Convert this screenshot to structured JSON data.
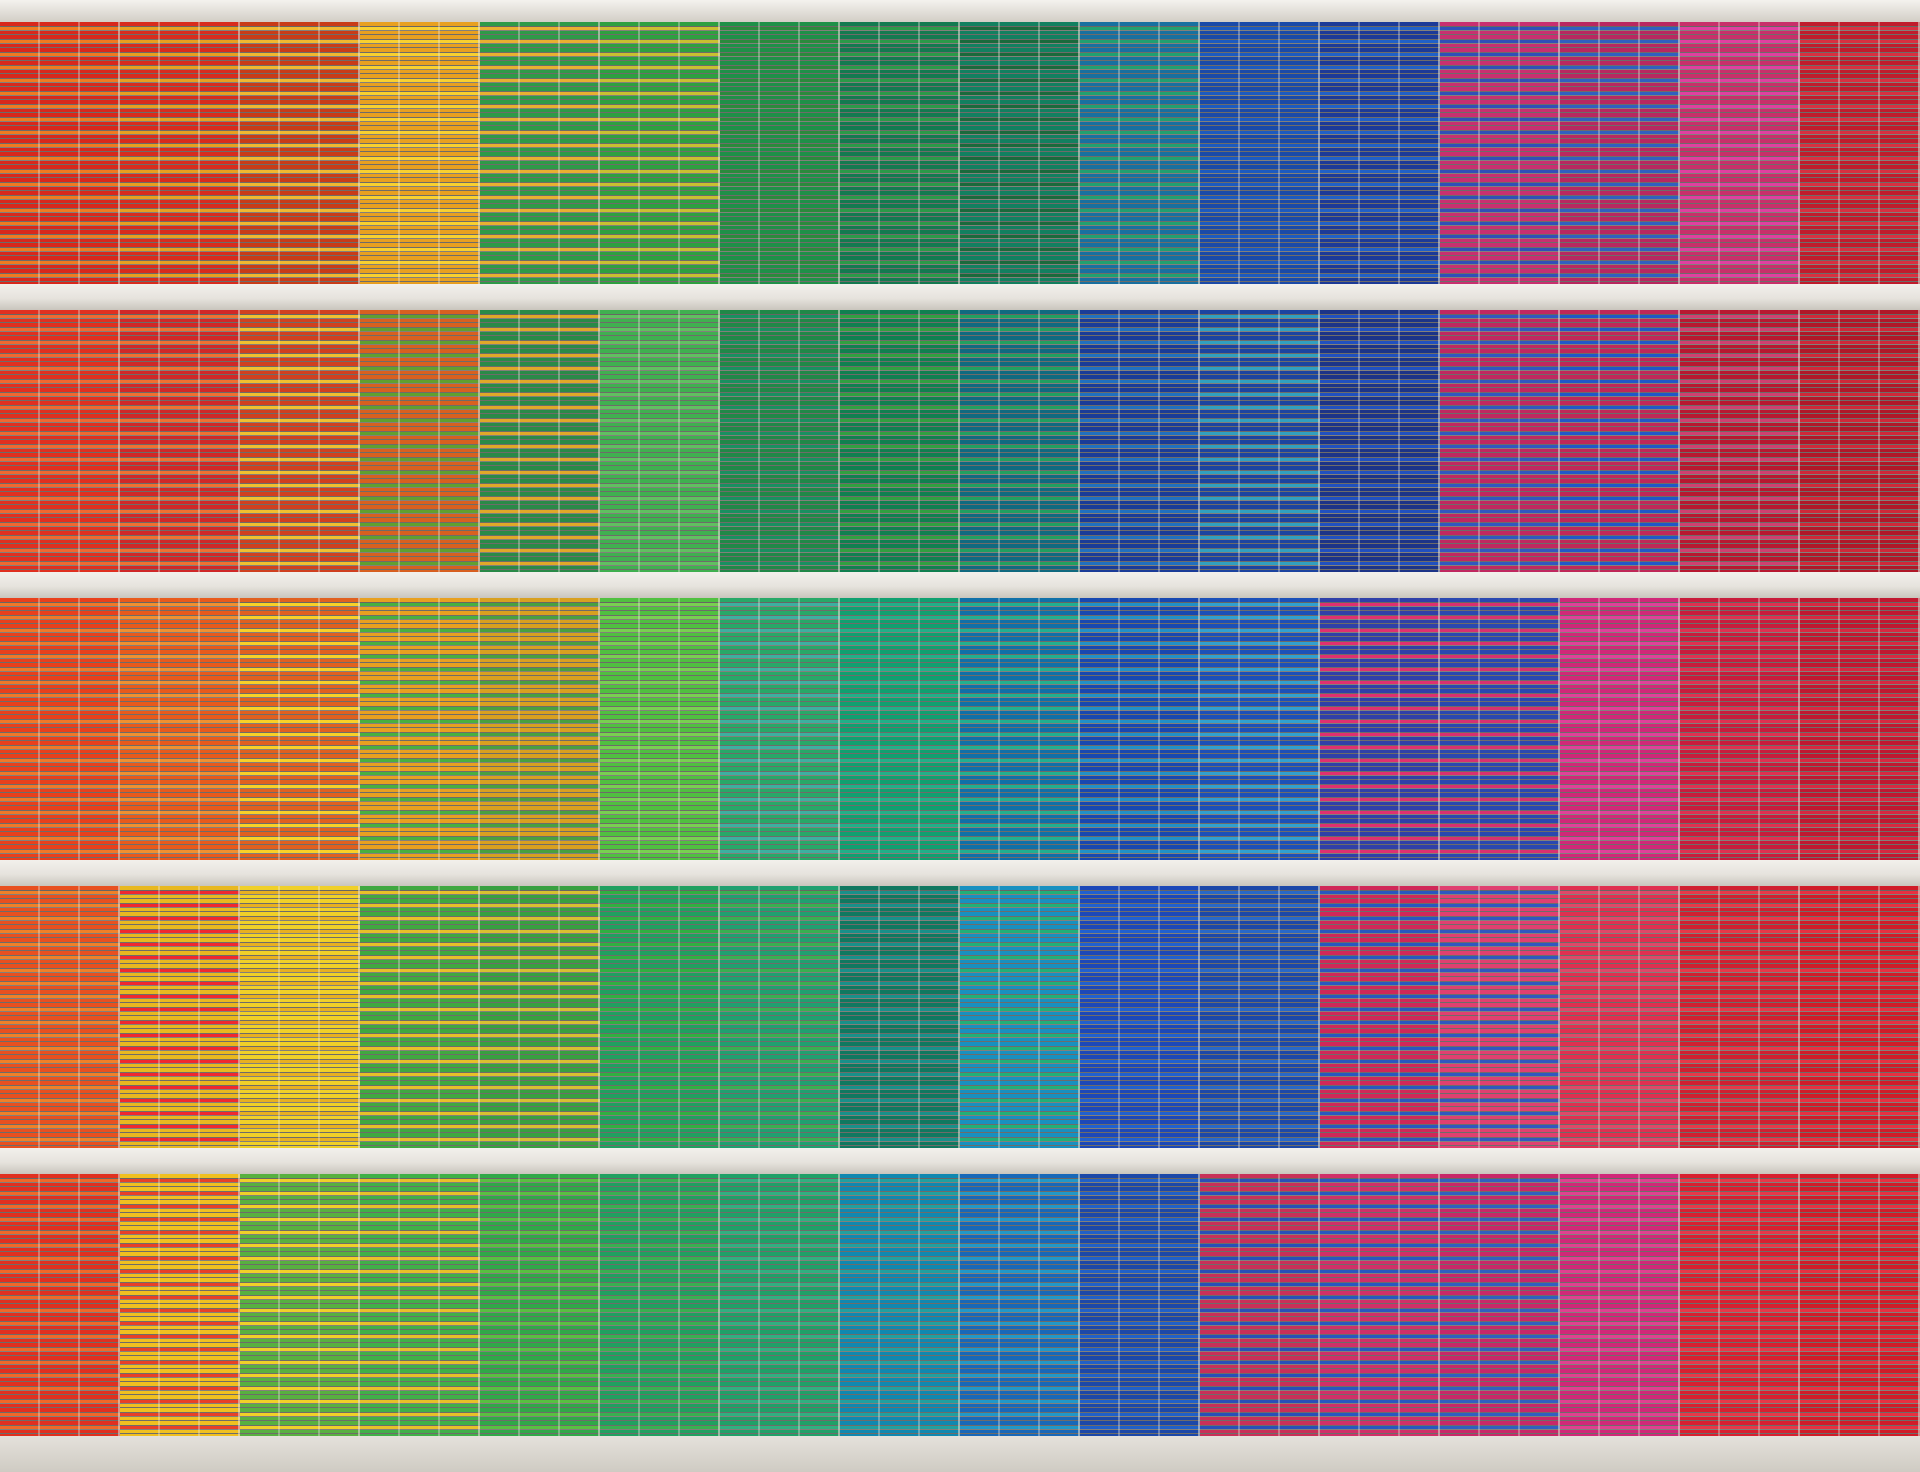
{
  "photo": {
    "subject": "",
    "floors": 5,
    "panels_per_floor": 16
  },
  "palette": {
    "rows": [
      [
        [
          "#d8281c",
          "#f07a20"
        ],
        [
          "#d82c1e",
          "#e8a020"
        ],
        [
          "#c83c18",
          "#f0b830"
        ],
        [
          "#e8a020",
          "#f8d030"
        ],
        [
          "#2e9a48",
          "#e8b030"
        ],
        [
          "#2ea040",
          "#c8c030"
        ],
        [
          "#1e9048",
          "#2a8a3c"
        ],
        [
          "#137a50",
          "#2a9a48"
        ],
        [
          "#128060",
          "#1a6a3c"
        ],
        [
          "#1870a0",
          "#20a070"
        ],
        [
          "#1a4aa8",
          "#1c5ac0"
        ],
        [
          "#1c3a98",
          "#2060c8"
        ],
        [
          "#c83070",
          "#3050b8"
        ],
        [
          "#b82860",
          "#3060c0"
        ],
        [
          "#c8306a",
          "#e040a0"
        ],
        [
          "#c01c2c",
          "#d83040"
        ]
      ],
      [
        [
          "#e03020",
          "#f06830"
        ],
        [
          "#d02828",
          "#f07030"
        ],
        [
          "#d04020",
          "#f0c030"
        ],
        [
          "#d86020",
          "#60a030"
        ],
        [
          "#2a8a48",
          "#e0a828"
        ],
        [
          "#40b050",
          "#60c060"
        ],
        [
          "#208848",
          "#189060"
        ],
        [
          "#108050",
          "#30a040"
        ],
        [
          "#106a80",
          "#20a060"
        ],
        [
          "#1a3c98",
          "#2070c0"
        ],
        [
          "#1c44a0",
          "#30a0c0"
        ],
        [
          "#1c3488",
          "#2050c0"
        ],
        [
          "#c02860",
          "#3058c0"
        ],
        [
          "#c02858",
          "#2058c8"
        ],
        [
          "#b81830",
          "#d04070"
        ],
        [
          "#b01828",
          "#d02838"
        ]
      ],
      [
        [
          "#e8401c",
          "#f07828"
        ],
        [
          "#e85a1c",
          "#f09030"
        ],
        [
          "#e06020",
          "#f8d028"
        ],
        [
          "#e8a020",
          "#48b040"
        ],
        [
          "#d8a020",
          "#48a040"
        ],
        [
          "#50c040",
          "#78d050"
        ],
        [
          "#28a868",
          "#3cb0a0"
        ],
        [
          "#10a070",
          "#20b088"
        ],
        [
          "#1070a8",
          "#20b090"
        ],
        [
          "#1848b0",
          "#2090c8"
        ],
        [
          "#1c50b8",
          "#30a0d0"
        ],
        [
          "#3040a8",
          "#e03070"
        ],
        [
          "#2a48b0",
          "#d83070"
        ],
        [
          "#d02878",
          "#e0409a"
        ],
        [
          "#c81c3c",
          "#e03050"
        ],
        [
          "#c01830",
          "#d82840"
        ]
      ],
      [
        [
          "#e85020",
          "#f08028"
        ],
        [
          "#e8b820",
          "#f02830"
        ],
        [
          "#f0d028",
          "#e8b020"
        ],
        [
          "#40a840",
          "#e8c028"
        ],
        [
          "#38a040",
          "#d8c030"
        ],
        [
          "#20a060",
          "#30b040"
        ],
        [
          "#20a070",
          "#38b050"
        ],
        [
          "#107860",
          "#18908a"
        ],
        [
          "#1890c0",
          "#20b078"
        ],
        [
          "#1c48b8",
          "#2060d0"
        ],
        [
          "#1c48a8",
          "#2868c8"
        ],
        [
          "#d02858",
          "#2858c0"
        ],
        [
          "#e04070",
          "#3058c0"
        ],
        [
          "#e03050",
          "#e04868"
        ],
        [
          "#d02030",
          "#e83848"
        ],
        [
          "#d01c28",
          "#e83040"
        ]
      ],
      [
        [
          "#e03020",
          "#f06828"
        ],
        [
          "#f0c020",
          "#e84028"
        ],
        [
          "#58b040",
          "#f0d028"
        ],
        [
          "#40b048",
          "#e8c028"
        ],
        [
          "#30a848",
          "#58c040"
        ],
        [
          "#20a060",
          "#38b050"
        ],
        [
          "#20a068",
          "#30b080"
        ],
        [
          "#1088b0",
          "#20a0a0"
        ],
        [
          "#1868b8",
          "#2098c8"
        ],
        [
          "#1c48a8",
          "#2060c8"
        ],
        [
          "#c83058",
          "#2850b8"
        ],
        [
          "#d03068",
          "#2858c0"
        ],
        [
          "#c82868",
          "#3060c0"
        ],
        [
          "#d02878",
          "#e04090"
        ],
        [
          "#d82030",
          "#e83848"
        ],
        [
          "#d01c28",
          "#e83040"
        ]
      ]
    ]
  }
}
